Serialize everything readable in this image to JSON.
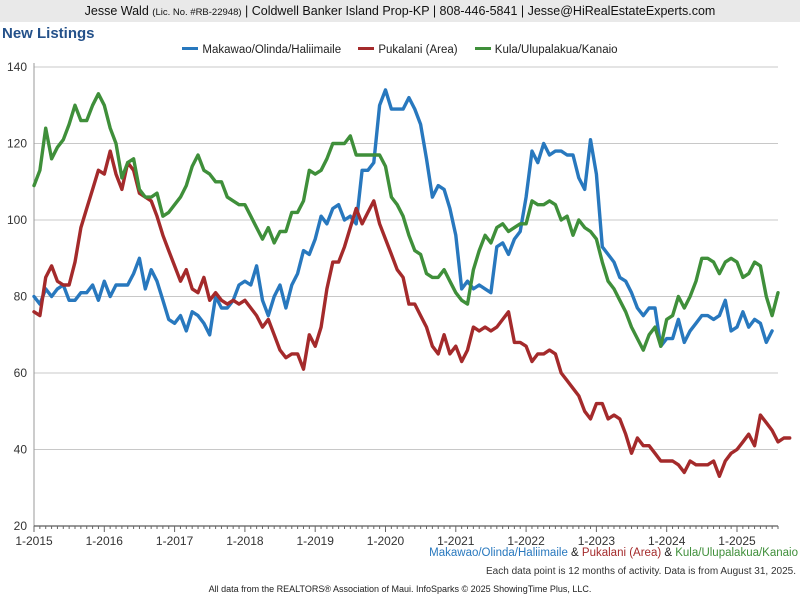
{
  "header": {
    "agent": "Jesse Wald",
    "license": "(Lic. No. #RB-22948)",
    "details": "| Coldwell Banker Island Prop-KP | 808-446-5841 | Jesse@HiRealEstateExperts.com"
  },
  "caption": {
    "sep1": " & ",
    "sep2": " & ",
    "note": "Each data point is 12 months of activity. Data is from August 31, 2025."
  },
  "footer": "All data from the REALTORS® Association of Maui. InfoSparks © 2025 ShowingTime Plus, LLC.",
  "chart_data": {
    "type": "line",
    "title": "New Listings",
    "xlabel": "",
    "ylabel": "",
    "x_start": "2015-01",
    "x_end": "2025-08",
    "x_ticks": [
      "1-2015",
      "1-2016",
      "1-2017",
      "1-2018",
      "1-2019",
      "1-2020",
      "1-2021",
      "1-2022",
      "1-2023",
      "1-2024",
      "1-2025"
    ],
    "ylim": [
      20,
      140
    ],
    "y_ticks": [
      20,
      40,
      60,
      80,
      100,
      120,
      140
    ],
    "grid": true,
    "legend_position": "top",
    "series": [
      {
        "name": "Makawao/Olinda/Haliimaile",
        "color": "#2878be",
        "values": [
          80,
          78,
          82,
          80,
          82,
          83,
          79,
          79,
          81,
          81,
          83,
          79,
          84,
          80,
          83,
          83,
          83,
          86,
          90,
          82,
          87,
          84,
          79,
          74,
          73,
          75,
          71,
          76,
          75,
          73,
          70,
          80,
          77,
          77,
          79,
          83,
          84,
          83,
          88,
          79,
          75,
          80,
          83,
          77,
          83,
          86,
          92,
          91,
          95,
          101,
          99,
          103,
          104,
          100,
          101,
          99,
          113,
          113,
          115,
          130,
          134,
          129,
          129,
          129,
          132,
          129,
          125,
          116,
          106,
          109,
          108,
          103,
          96,
          82,
          84,
          82,
          83,
          82,
          81,
          93,
          94,
          91,
          95,
          97,
          106,
          118,
          115,
          120,
          117,
          118,
          118,
          117,
          117,
          111,
          108,
          121,
          112,
          93,
          91,
          89,
          85,
          84,
          81,
          77,
          75,
          77,
          77,
          67,
          69,
          69,
          74,
          68,
          71,
          73,
          75,
          75,
          74,
          75,
          79,
          71,
          72,
          76,
          72,
          74,
          73,
          68,
          71
        ]
      },
      {
        "name": "Pukalani (Area)",
        "color": "#a42a2b",
        "values": [
          76,
          75,
          85,
          88,
          84,
          83,
          83,
          89,
          98,
          103,
          108,
          113,
          112,
          118,
          112,
          108,
          115,
          113,
          107,
          106,
          105,
          101,
          96,
          92,
          88,
          84,
          87,
          82,
          81,
          85,
          79,
          81,
          79,
          78,
          79,
          78,
          79,
          77,
          75,
          72,
          74,
          70,
          66,
          64,
          65,
          65,
          61,
          70,
          67,
          72,
          82,
          89,
          89,
          93,
          98,
          103,
          99,
          102,
          105,
          99,
          95,
          91,
          87,
          85,
          78,
          78,
          75,
          72,
          67,
          65,
          70,
          65,
          67,
          63,
          66,
          72,
          71,
          72,
          71,
          72,
          74,
          76,
          68,
          68,
          67,
          63,
          65,
          65,
          66,
          65,
          60,
          58,
          56,
          54,
          50,
          48,
          52,
          52,
          48,
          49,
          48,
          44,
          39,
          43,
          41,
          41,
          39,
          37,
          37,
          37,
          36,
          34,
          37,
          36,
          36,
          36,
          37,
          33,
          37,
          39,
          40,
          42,
          44,
          41,
          49,
          47,
          45,
          42,
          43,
          43
        ]
      },
      {
        "name": "Kula/Ulupalakua/Kanaio",
        "color": "#3f8f3a",
        "values": [
          109,
          113,
          124,
          116,
          119,
          121,
          125,
          130,
          126,
          126,
          130,
          133,
          130,
          124,
          120,
          111,
          115,
          116,
          108,
          106,
          106,
          107,
          101,
          102,
          104,
          106,
          109,
          114,
          117,
          113,
          112,
          110,
          110,
          106,
          105,
          104,
          104,
          101,
          98,
          95,
          98,
          94,
          97,
          97,
          102,
          102,
          105,
          113,
          112,
          113,
          116,
          120,
          120,
          120,
          122,
          117,
          117,
          117,
          117,
          117,
          114,
          106,
          104,
          101,
          96,
          92,
          91,
          86,
          85,
          85,
          87,
          84,
          81,
          79,
          78,
          87,
          92,
          96,
          94,
          98,
          99,
          97,
          98,
          99,
          99,
          105,
          104,
          104,
          105,
          104,
          100,
          101,
          96,
          100,
          98,
          97,
          95,
          89,
          84,
          82,
          79,
          76,
          72,
          69,
          66,
          70,
          72,
          67,
          74,
          75,
          80,
          77,
          80,
          84,
          90,
          90,
          89,
          86,
          89,
          90,
          89,
          85,
          86,
          89,
          88,
          80,
          75,
          81
        ]
      }
    ]
  }
}
